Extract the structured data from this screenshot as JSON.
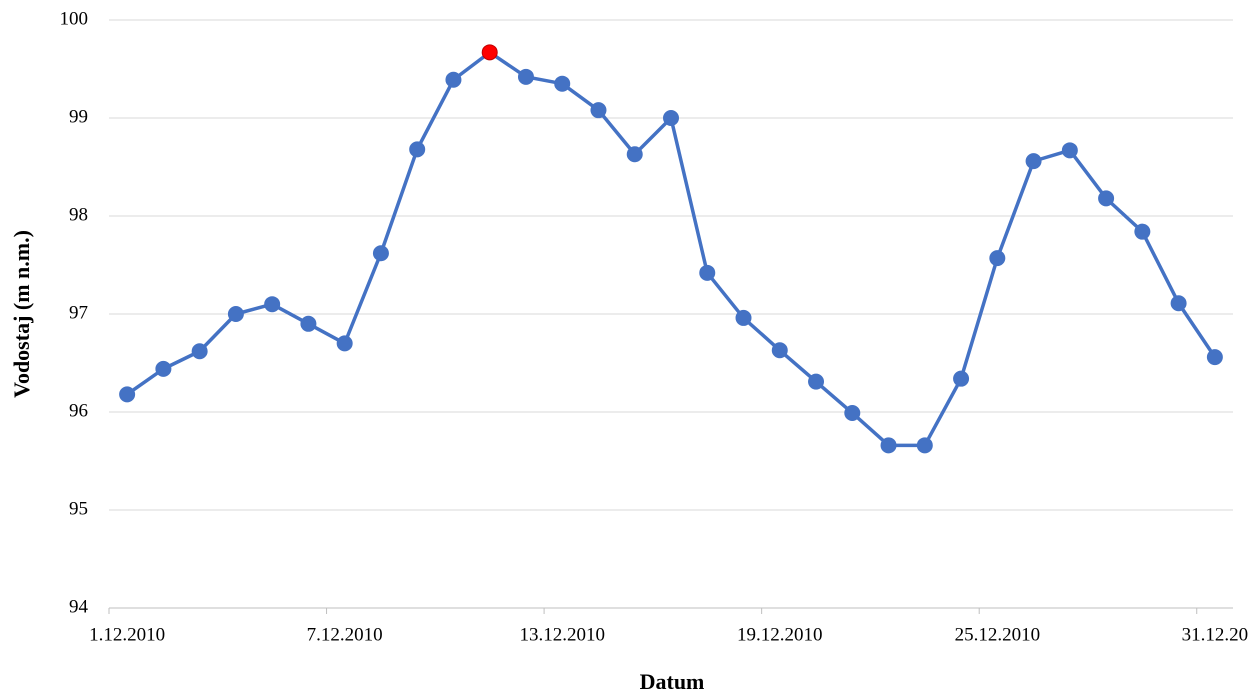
{
  "chart_data": {
    "type": "line",
    "x_label": "Datum",
    "y_label": "Vodostaj (m n.m.)",
    "categories": [
      "1.12.2010",
      null,
      null,
      null,
      null,
      null,
      "7.12.2010",
      null,
      null,
      null,
      null,
      null,
      "13.12.2010",
      null,
      null,
      null,
      null,
      null,
      "19.12.2010",
      null,
      null,
      null,
      null,
      null,
      "25.12.2010",
      null,
      null,
      null,
      null,
      null,
      "31.12.20"
    ],
    "series": [
      {
        "name": "Vodostaj",
        "color": "#4472c4",
        "values": [
          96.18,
          96.44,
          96.62,
          97.0,
          97.1,
          96.9,
          96.7,
          97.62,
          98.68,
          99.39,
          99.67,
          99.42,
          99.35,
          99.08,
          98.63,
          99.0,
          97.42,
          96.96,
          96.63,
          96.31,
          95.99,
          95.66,
          95.66,
          96.34,
          97.57,
          98.56,
          98.67,
          98.18,
          97.84,
          97.11,
          96.56
        ],
        "marker_colors": [
          "#4472c4",
          "#4472c4",
          "#4472c4",
          "#4472c4",
          "#4472c4",
          "#4472c4",
          "#4472c4",
          "#4472c4",
          "#4472c4",
          "#4472c4",
          "#ff0000",
          "#4472c4",
          "#4472c4",
          "#4472c4",
          "#4472c4",
          "#4472c4",
          "#4472c4",
          "#4472c4",
          "#4472c4",
          "#4472c4",
          "#4472c4",
          "#4472c4",
          "#4472c4",
          "#4472c4",
          "#4472c4",
          "#4472c4",
          "#4472c4",
          "#4472c4",
          "#4472c4",
          "#4472c4",
          "#4472c4"
        ]
      }
    ],
    "ylim": [
      94,
      100
    ],
    "yticks": [
      94,
      95,
      96,
      97,
      98,
      99,
      100
    ],
    "grid": true
  }
}
